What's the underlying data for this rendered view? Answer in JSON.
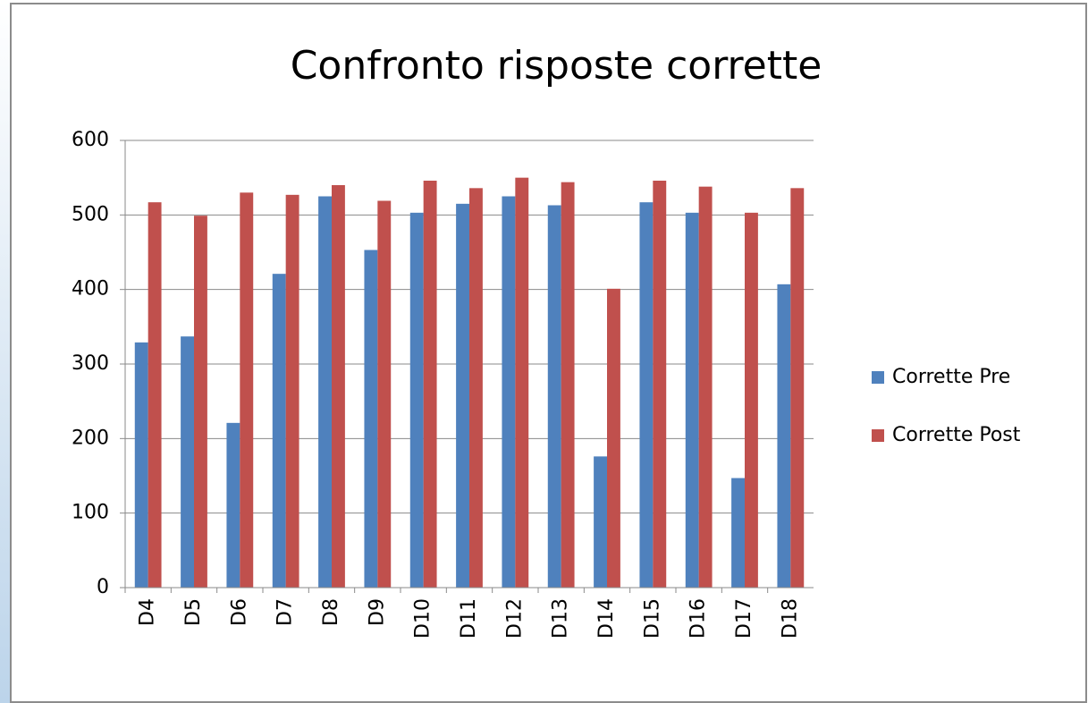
{
  "chart_data": {
    "type": "bar",
    "title": "Confronto risposte corrette",
    "categories": [
      "D4",
      "D5",
      "D6",
      "D7",
      "D8",
      "D9",
      "D10",
      "D11",
      "D12",
      "D13",
      "D14",
      "D15",
      "D16",
      "D17",
      "D18"
    ],
    "series": [
      {
        "name": "Corrette Pre",
        "color": "#4f81bd",
        "values": [
          329,
          337,
          221,
          421,
          525,
          453,
          503,
          515,
          525,
          513,
          176,
          517,
          503,
          147,
          407
        ]
      },
      {
        "name": "Corrette Post",
        "color": "#c0504d",
        "values": [
          517,
          499,
          530,
          527,
          540,
          519,
          546,
          536,
          550,
          544,
          401,
          546,
          538,
          503,
          536
        ]
      }
    ],
    "ylim": [
      0,
      600
    ],
    "yticks": [
      0,
      100,
      200,
      300,
      400,
      500,
      600
    ],
    "grid": true,
    "legend": "right"
  }
}
